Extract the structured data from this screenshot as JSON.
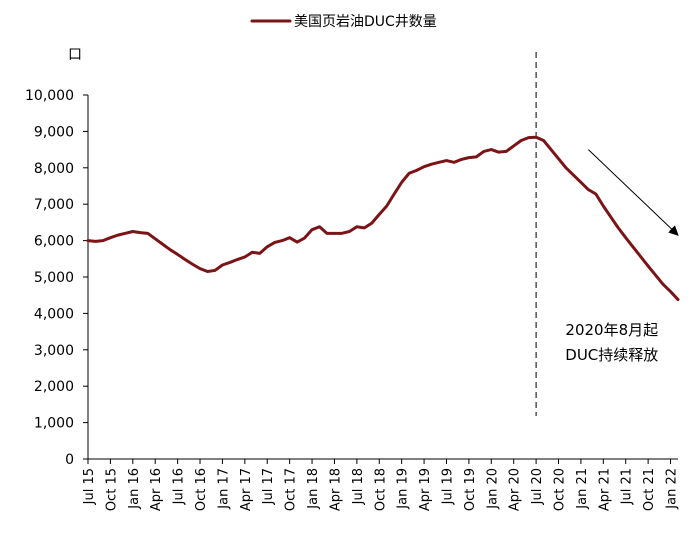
{
  "chart_data": {
    "type": "line",
    "title": "",
    "xlabel": "",
    "ylabel": "口",
    "ylim": [
      0,
      10000
    ],
    "yticks": [
      0,
      1000,
      2000,
      3000,
      4000,
      5000,
      6000,
      7000,
      8000,
      9000,
      10000
    ],
    "ytick_labels": [
      "0",
      "1,000",
      "2,000",
      "3,000",
      "4,000",
      "5,000",
      "6,000",
      "7,000",
      "8,000",
      "9,000",
      "10,000"
    ],
    "xtick_labels": [
      "Jul 15",
      "Oct 15",
      "Jan 16",
      "Apr 16",
      "Jul 16",
      "Oct 16",
      "Jan 17",
      "Apr 17",
      "Jul 17",
      "Oct 17",
      "Jan 18",
      "Apr 18",
      "Jul 18",
      "Oct 18",
      "Jan 19",
      "Apr 19",
      "Jul 19",
      "Oct 19",
      "Jan 20",
      "Apr 20",
      "Jul 20",
      "Oct 20",
      "Jan 21",
      "Apr 21",
      "Jul 21",
      "Oct 21",
      "Jan 22"
    ],
    "legend": {
      "position": "top-center",
      "entries": [
        "美国页岩油DUC井数量"
      ]
    },
    "grid": false,
    "colors": {
      "series": "#7b1416",
      "axis": "#000000"
    },
    "series": [
      {
        "name": "美国页岩油DUC井数量",
        "x": [
          "2015-07",
          "2015-08",
          "2015-09",
          "2015-10",
          "2015-11",
          "2015-12",
          "2016-01",
          "2016-02",
          "2016-03",
          "2016-04",
          "2016-05",
          "2016-06",
          "2016-07",
          "2016-08",
          "2016-09",
          "2016-10",
          "2016-11",
          "2016-12",
          "2017-01",
          "2017-02",
          "2017-03",
          "2017-04",
          "2017-05",
          "2017-06",
          "2017-07",
          "2017-08",
          "2017-09",
          "2017-10",
          "2017-11",
          "2017-12",
          "2018-01",
          "2018-02",
          "2018-03",
          "2018-04",
          "2018-05",
          "2018-06",
          "2018-07",
          "2018-08",
          "2018-09",
          "2018-10",
          "2018-11",
          "2018-12",
          "2019-01",
          "2019-02",
          "2019-03",
          "2019-04",
          "2019-05",
          "2019-06",
          "2019-07",
          "2019-08",
          "2019-09",
          "2019-10",
          "2019-11",
          "2019-12",
          "2020-01",
          "2020-02",
          "2020-03",
          "2020-04",
          "2020-05",
          "2020-06",
          "2020-07",
          "2020-08",
          "2020-09",
          "2020-10",
          "2020-11",
          "2020-12",
          "2021-01",
          "2021-02",
          "2021-03",
          "2021-04",
          "2021-05",
          "2021-06",
          "2021-07",
          "2021-08",
          "2021-09",
          "2021-10",
          "2021-11",
          "2021-12",
          "2022-01",
          "2022-02"
        ],
        "values": [
          6000,
          5980,
          6000,
          6080,
          6150,
          6200,
          6250,
          6220,
          6200,
          6050,
          5900,
          5750,
          5620,
          5480,
          5350,
          5230,
          5150,
          5180,
          5330,
          5400,
          5480,
          5550,
          5680,
          5650,
          5830,
          5950,
          6000,
          6080,
          5960,
          6070,
          6300,
          6380,
          6200,
          6200,
          6200,
          6250,
          6380,
          6350,
          6480,
          6720,
          6950,
          7280,
          7600,
          7850,
          7930,
          8030,
          8100,
          8150,
          8200,
          8150,
          8230,
          8280,
          8300,
          8450,
          8500,
          8430,
          8450,
          8600,
          8750,
          8830,
          8840,
          8750,
          8500,
          8250,
          8000,
          7800,
          7600,
          7400,
          7280,
          6950,
          6650,
          6350,
          6080,
          5820,
          5560,
          5300,
          5050,
          4800,
          4600,
          4380
        ]
      }
    ],
    "annotations": [
      {
        "type": "vline",
        "x": "2020-07",
        "style": "dashed"
      },
      {
        "type": "arrow",
        "from": [
          "2021-02",
          8500
        ],
        "to": [
          "2022-02",
          6150
        ]
      },
      {
        "type": "text",
        "lines": [
          "2020年8月起",
          "DUC持续释放"
        ],
        "at": [
          "2021-05",
          3400
        ]
      }
    ]
  }
}
